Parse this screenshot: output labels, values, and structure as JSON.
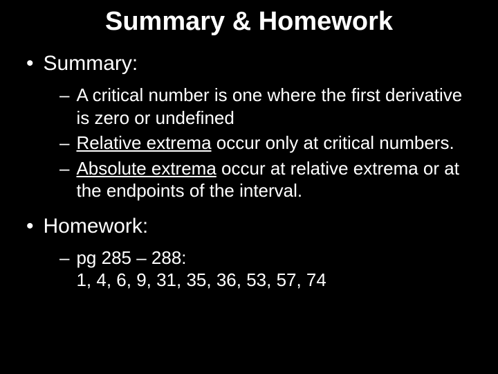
{
  "background_color": "#000000",
  "text_color": "#ffffff",
  "font_family": "Arial",
  "title": {
    "text": "Summary & Homework",
    "fontsize": 38,
    "weight": "bold",
    "align": "center"
  },
  "sections": {
    "summary": {
      "heading": "Summary:",
      "heading_fontsize": 30,
      "items": [
        {
          "pre": "A critical number is one where the first derivative is zero or undefined",
          "underlined": null,
          "post": null
        },
        {
          "pre": null,
          "underlined": "Relative extrema",
          "post": " occur only at critical numbers."
        },
        {
          "pre": null,
          "underlined": "Absolute extrema",
          "post": " occur at relative extrema or at the endpoints of the interval."
        }
      ],
      "item_fontsize": 26
    },
    "homework": {
      "heading": "Homework:",
      "heading_fontsize": 30,
      "items": [
        {
          "line1": "pg 285 – 288:",
          "line2": "1, 4, 6, 9, 31, 35, 36, 53, 57, 74"
        }
      ],
      "item_fontsize": 26
    }
  },
  "bullet_markers": {
    "level1": "•",
    "level2": "–"
  }
}
